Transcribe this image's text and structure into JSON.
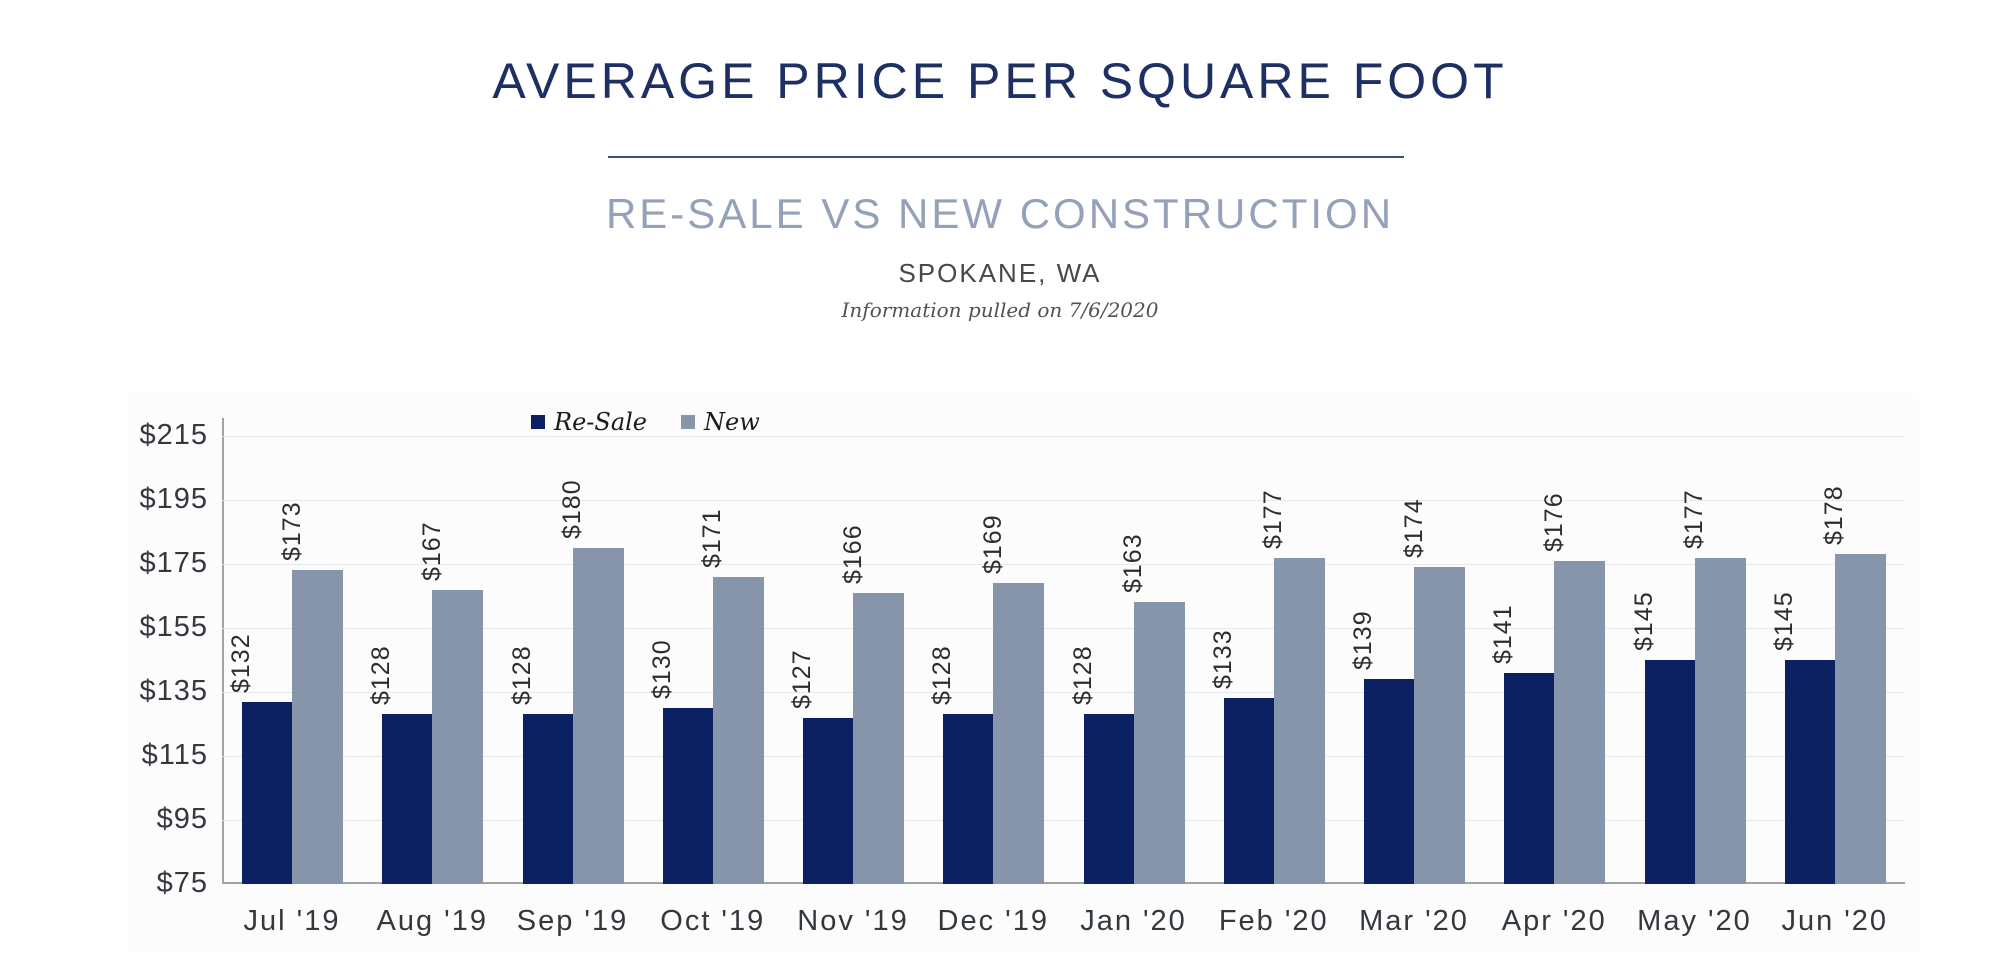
{
  "header": {
    "title": "AVERAGE PRICE PER SQUARE FOOT",
    "subtitle": "RE-SALE VS NEW CONSTRUCTION",
    "location": "SPOKANE, WA",
    "note": "Information pulled on 7/6/2020"
  },
  "colors": {
    "title_navy": "#1d2f63",
    "subtitle_blue_gray": "#93a2b9",
    "resale_bar": "#0b2162",
    "new_bar": "#8795ab",
    "gridline": "#e8e8ec",
    "axis_line": "#a3a3a3",
    "tick_text": "#35393f",
    "data_label_text": "#2d2d2d"
  },
  "chart_data": {
    "type": "bar",
    "title": "Average Price Per Square Foot",
    "subtitle": "Re-Sale vs New Construction",
    "region": "Spokane, WA",
    "categories": [
      "Jul '19",
      "Aug '19",
      "Sep '19",
      "Oct '19",
      "Nov '19",
      "Dec '19",
      "Jan '20",
      "Feb '20",
      "Mar '20",
      "Apr '20",
      "May '20",
      "Jun '20"
    ],
    "series": [
      {
        "name": "Re-Sale",
        "values": [
          132,
          128,
          128,
          130,
          127,
          128,
          128,
          133,
          139,
          141,
          145,
          145
        ]
      },
      {
        "name": "New",
        "values": [
          173,
          167,
          180,
          171,
          166,
          169,
          163,
          177,
          174,
          176,
          177,
          178
        ]
      }
    ],
    "data_label_prefix": "$",
    "ylabel": "",
    "xlabel": "",
    "ytick_values": [
      215,
      195,
      175,
      155,
      135,
      115,
      95,
      75
    ],
    "ytick_labels": [
      "$215",
      "$195",
      "$175",
      "$155",
      "$135",
      "$115",
      "$95",
      "$75"
    ],
    "ylim": [
      75,
      215
    ],
    "grid": "horizontal",
    "legend_position": "top-inside-left",
    "bar_value_labels_rotated": true
  }
}
